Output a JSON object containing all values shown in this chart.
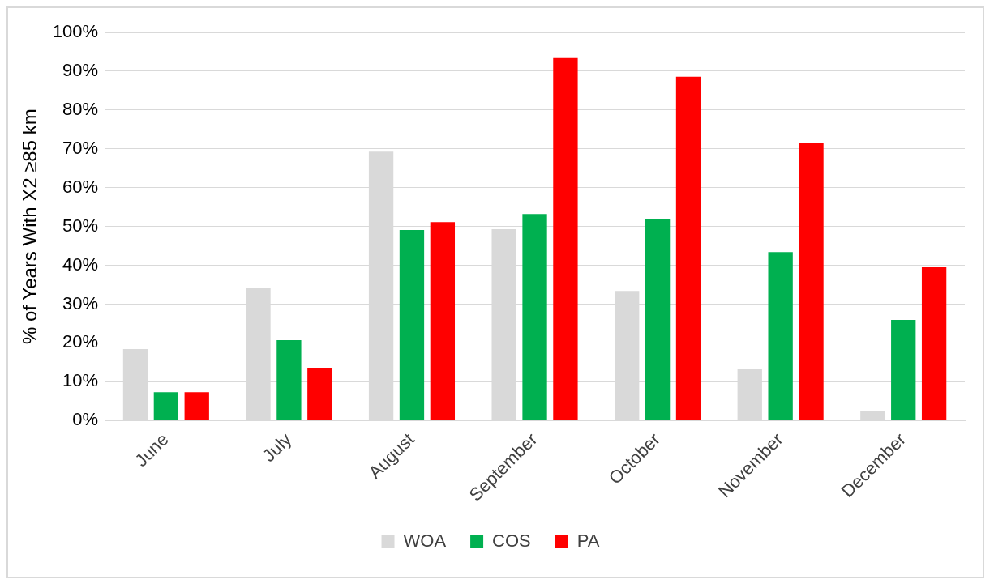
{
  "chart_data": {
    "type": "bar",
    "ylabel": "% of Years With X2 ≥85 km",
    "categories": [
      "June",
      "July",
      "August",
      "September",
      "October",
      "November",
      "December"
    ],
    "series": [
      {
        "name": "WOA",
        "color": "#d9d9d9",
        "values": [
          18.4,
          34.1,
          69.3,
          49.3,
          33.4,
          13.4,
          2.5
        ]
      },
      {
        "name": "COS",
        "color": "#00b050",
        "values": [
          7.3,
          20.7,
          49.1,
          53.2,
          52.0,
          43.4,
          25.9
        ]
      },
      {
        "name": "PA",
        "color": "#ff0000",
        "values": [
          7.3,
          13.6,
          51.1,
          93.6,
          88.6,
          71.4,
          39.5
        ]
      }
    ],
    "ylim": [
      0,
      100
    ],
    "yticks": [
      {
        "value": 0,
        "label": "0%"
      },
      {
        "value": 10,
        "label": "10%"
      },
      {
        "value": 20,
        "label": "20%"
      },
      {
        "value": 30,
        "label": "30%"
      },
      {
        "value": 40,
        "label": "40%"
      },
      {
        "value": 50,
        "label": "50%"
      },
      {
        "value": 60,
        "label": "60%"
      },
      {
        "value": 70,
        "label": "70%"
      },
      {
        "value": 80,
        "label": "80%"
      },
      {
        "value": 90,
        "label": "90%"
      },
      {
        "value": 100,
        "label": "100%"
      }
    ],
    "grid": "y",
    "legend": "bottom"
  }
}
